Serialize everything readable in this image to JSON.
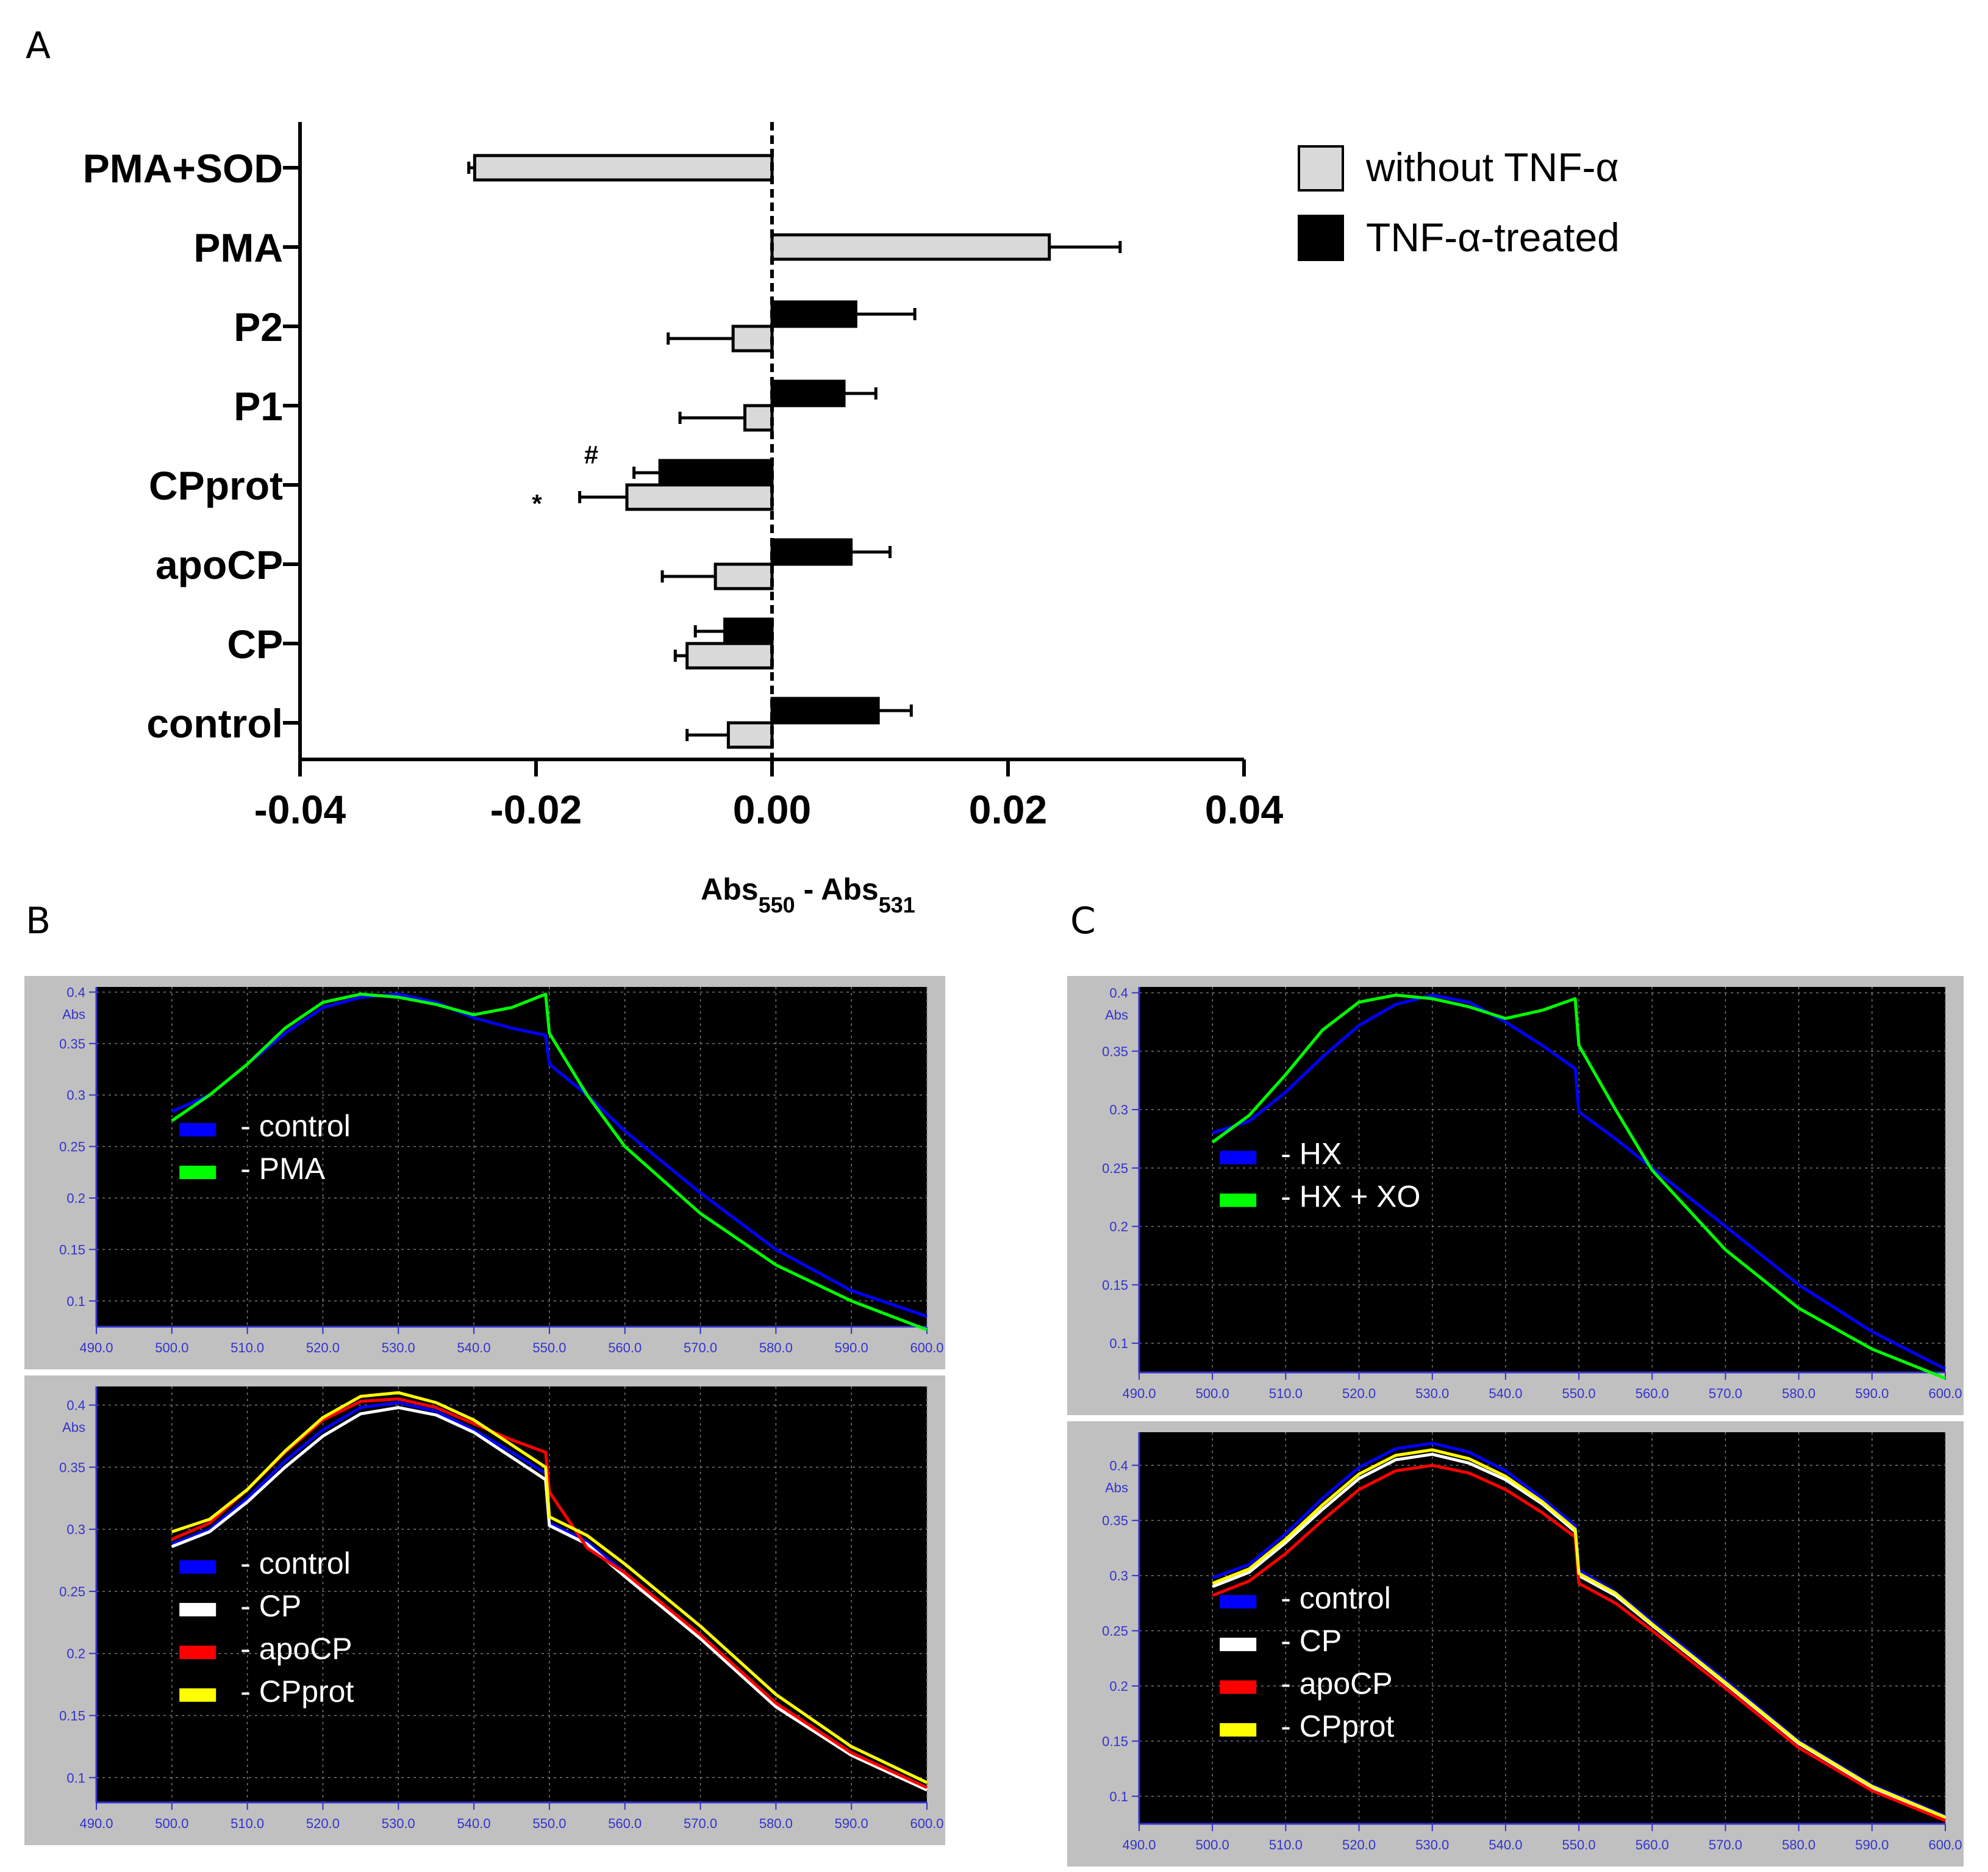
{
  "panel_labels": {
    "a": "A",
    "b": "B",
    "c": "C"
  },
  "colors": {
    "without": "#d9d9d9",
    "treated": "#000000",
    "control": "#0000ff",
    "pma": "#00ff00",
    "cp": "#ffffff",
    "apocp": "#ff0000",
    "cpprot": "#ffff00",
    "spec_bg": "#000000",
    "spec_frame": "#c0c0c0",
    "spec_axis": "#3333cc"
  },
  "chart_data": [
    {
      "type": "bar",
      "orientation": "horizontal",
      "panel": "A",
      "categories": [
        "control",
        "CP",
        "apoCP",
        "CPprot",
        "P1",
        "P2",
        "PMA",
        "PMA+SOD"
      ],
      "series": [
        {
          "name": "without TNF-α",
          "key": "without",
          "values": [
            -0.0037,
            -0.0072,
            -0.0048,
            -0.0123,
            -0.0023,
            -0.0033,
            0.0235,
            -0.0252
          ],
          "errors": [
            0.0035,
            0.001,
            0.0045,
            0.004,
            0.0055,
            0.0055,
            0.006,
            0.0005
          ]
        },
        {
          "name": "TNF-α-treated",
          "key": "treated",
          "values": [
            0.009,
            -0.004,
            0.0067,
            -0.0095,
            0.0061,
            0.0071,
            null,
            null
          ],
          "errors": [
            0.0028,
            0.0025,
            0.0033,
            0.0022,
            0.0027,
            0.005,
            null,
            null
          ]
        }
      ],
      "annotations": [
        {
          "text": "#",
          "category": "CPprot",
          "series": "treated"
        },
        {
          "text": "*",
          "category": "CPprot",
          "series": "without"
        }
      ],
      "xlim": [
        -0.04,
        0.04
      ],
      "xticks": [
        -0.04,
        -0.02,
        0.0,
        0.02,
        0.04
      ],
      "xtick_labels": [
        "-0.04",
        "-0.02",
        "0.00",
        "0.02",
        "0.04"
      ],
      "xlabel_main": "Abs",
      "xlabel_sub1": "550",
      "xlabel_mid": " - Abs",
      "xlabel_sub2": "531",
      "legend_position": "top-right"
    },
    {
      "type": "line",
      "panel": "B-top",
      "xlim": [
        490,
        600
      ],
      "ylim": [
        0.075,
        0.405
      ],
      "ylabel": "Abs",
      "xticks": [
        "490.0",
        "500.0",
        "510.0",
        "520.0",
        "530.0",
        "540.0",
        "550.0",
        "560.0",
        "570.0",
        "580.0",
        "590.0",
        "600.0"
      ],
      "yticks": [
        "0.1",
        "0.15",
        "0.2",
        "0.25",
        "0.3",
        "0.35",
        "0.4"
      ],
      "legend": [
        "- control",
        "- PMA"
      ],
      "series": [
        {
          "name": "control",
          "key": "control",
          "x": [
            500,
            505,
            510,
            515,
            520,
            525,
            530,
            535,
            540,
            545,
            549.5,
            550,
            555,
            560,
            570,
            580,
            590,
            600
          ],
          "y": [
            0.284,
            0.3,
            0.33,
            0.36,
            0.385,
            0.395,
            0.398,
            0.39,
            0.375,
            0.365,
            0.358,
            0.33,
            0.3,
            0.265,
            0.205,
            0.15,
            0.11,
            0.085
          ]
        },
        {
          "name": "PMA",
          "key": "pma",
          "x": [
            500,
            505,
            510,
            515,
            520,
            525,
            530,
            535,
            540,
            545,
            549.5,
            550,
            555,
            560,
            570,
            580,
            590,
            600
          ],
          "y": [
            0.275,
            0.3,
            0.33,
            0.365,
            0.39,
            0.398,
            0.395,
            0.388,
            0.378,
            0.385,
            0.398,
            0.36,
            0.3,
            0.25,
            0.185,
            0.135,
            0.1,
            0.072
          ]
        }
      ]
    },
    {
      "type": "line",
      "panel": "B-bottom",
      "xlim": [
        490,
        600
      ],
      "ylim": [
        0.08,
        0.415
      ],
      "ylabel": "Abs",
      "xticks": [
        "490.0",
        "500.0",
        "510.0",
        "520.0",
        "530.0",
        "540.0",
        "550.0",
        "560.0",
        "570.0",
        "580.0",
        "590.0",
        "600.0"
      ],
      "yticks": [
        "0.1",
        "0.15",
        "0.2",
        "0.25",
        "0.3",
        "0.35",
        "0.4"
      ],
      "legend": [
        "- control",
        "- CP",
        "- apoCP",
        "- CPprot"
      ],
      "series": [
        {
          "name": "control",
          "key": "control",
          "x": [
            500,
            505,
            510,
            515,
            520,
            525,
            530,
            535,
            540,
            545,
            549.5,
            550,
            555,
            560,
            570,
            580,
            590,
            600
          ],
          "y": [
            0.288,
            0.3,
            0.325,
            0.355,
            0.38,
            0.398,
            0.402,
            0.395,
            0.38,
            0.362,
            0.345,
            0.305,
            0.29,
            0.265,
            0.215,
            0.16,
            0.12,
            0.092
          ]
        },
        {
          "name": "CP",
          "key": "cp",
          "x": [
            500,
            505,
            510,
            515,
            520,
            525,
            530,
            535,
            540,
            545,
            549.5,
            550,
            555,
            560,
            570,
            580,
            590,
            600
          ],
          "y": [
            0.286,
            0.298,
            0.322,
            0.35,
            0.375,
            0.393,
            0.398,
            0.392,
            0.378,
            0.358,
            0.34,
            0.303,
            0.288,
            0.262,
            0.212,
            0.157,
            0.118,
            0.09
          ]
        },
        {
          "name": "apoCP",
          "key": "apocp",
          "x": [
            500,
            505,
            510,
            515,
            520,
            525,
            530,
            535,
            540,
            545,
            549.5,
            550,
            555,
            560,
            570,
            580,
            590,
            600
          ],
          "y": [
            0.292,
            0.305,
            0.332,
            0.362,
            0.388,
            0.403,
            0.405,
            0.398,
            0.385,
            0.372,
            0.362,
            0.33,
            0.285,
            0.265,
            0.215,
            0.16,
            0.12,
            0.092
          ]
        },
        {
          "name": "CPprot",
          "key": "cpprot",
          "x": [
            500,
            505,
            510,
            515,
            520,
            525,
            530,
            535,
            540,
            545,
            549.5,
            550,
            555,
            560,
            570,
            580,
            590,
            600
          ],
          "y": [
            0.298,
            0.308,
            0.332,
            0.363,
            0.39,
            0.407,
            0.41,
            0.402,
            0.388,
            0.368,
            0.35,
            0.31,
            0.295,
            0.272,
            0.222,
            0.167,
            0.125,
            0.096
          ]
        }
      ]
    },
    {
      "type": "line",
      "panel": "C-top",
      "xlim": [
        490,
        600
      ],
      "ylim": [
        0.075,
        0.405
      ],
      "ylabel": "Abs",
      "xticks": [
        "490.0",
        "500.0",
        "510.0",
        "520.0",
        "530.0",
        "540.0",
        "550.0",
        "560.0",
        "570.0",
        "580.0",
        "590.0",
        "600.0"
      ],
      "yticks": [
        "0.1",
        "0.15",
        "0.2",
        "0.25",
        "0.3",
        "0.35",
        "0.4"
      ],
      "legend": [
        "- HX",
        "- HX + XO"
      ],
      "series": [
        {
          "name": "HX",
          "key": "control",
          "x": [
            500,
            505,
            510,
            515,
            520,
            525,
            530,
            535,
            540,
            545,
            549.5,
            550,
            555,
            560,
            570,
            580,
            590,
            600
          ],
          "y": [
            0.28,
            0.29,
            0.315,
            0.345,
            0.372,
            0.39,
            0.398,
            0.392,
            0.375,
            0.355,
            0.335,
            0.298,
            0.275,
            0.25,
            0.2,
            0.15,
            0.11,
            0.078
          ]
        },
        {
          "name": "HX + XO",
          "key": "pma",
          "x": [
            500,
            505,
            510,
            515,
            520,
            525,
            530,
            535,
            540,
            545,
            549.5,
            550,
            555,
            560,
            570,
            580,
            590,
            600
          ],
          "y": [
            0.272,
            0.295,
            0.33,
            0.368,
            0.392,
            0.398,
            0.395,
            0.388,
            0.378,
            0.385,
            0.395,
            0.355,
            0.3,
            0.248,
            0.18,
            0.13,
            0.095,
            0.07
          ]
        }
      ]
    },
    {
      "type": "line",
      "panel": "C-bottom",
      "xlim": [
        490,
        600
      ],
      "ylim": [
        0.075,
        0.43
      ],
      "ylabel": "Abs",
      "xticks": [
        "490.0",
        "500.0",
        "510.0",
        "520.0",
        "530.0",
        "540.0",
        "550.0",
        "560.0",
        "570.0",
        "580.0",
        "590.0",
        "600.0"
      ],
      "yticks": [
        "0.1",
        "0.15",
        "0.2",
        "0.25",
        "0.3",
        "0.35",
        "0.4"
      ],
      "legend": [
        "- control",
        "- CP",
        "- apoCP",
        "- CPprot"
      ],
      "series": [
        {
          "name": "control",
          "key": "control",
          "x": [
            500,
            505,
            510,
            515,
            520,
            525,
            530,
            535,
            540,
            545,
            549.5,
            550,
            555,
            560,
            570,
            580,
            590,
            600
          ],
          "y": [
            0.298,
            0.31,
            0.338,
            0.37,
            0.398,
            0.415,
            0.42,
            0.412,
            0.395,
            0.37,
            0.345,
            0.305,
            0.285,
            0.258,
            0.205,
            0.15,
            0.11,
            0.082
          ]
        },
        {
          "name": "CP",
          "key": "cp",
          "x": [
            500,
            505,
            510,
            515,
            520,
            525,
            530,
            535,
            540,
            545,
            549.5,
            550,
            555,
            560,
            570,
            580,
            590,
            600
          ],
          "y": [
            0.29,
            0.303,
            0.33,
            0.36,
            0.388,
            0.405,
            0.41,
            0.402,
            0.387,
            0.365,
            0.34,
            0.3,
            0.282,
            0.255,
            0.202,
            0.148,
            0.108,
            0.08
          ]
        },
        {
          "name": "apoCP",
          "key": "apocp",
          "x": [
            500,
            505,
            510,
            515,
            520,
            525,
            530,
            535,
            540,
            545,
            549.5,
            550,
            555,
            560,
            570,
            580,
            590,
            600
          ],
          "y": [
            0.282,
            0.295,
            0.32,
            0.35,
            0.378,
            0.395,
            0.4,
            0.393,
            0.378,
            0.357,
            0.335,
            0.293,
            0.275,
            0.25,
            0.198,
            0.144,
            0.105,
            0.078
          ]
        },
        {
          "name": "CPprot",
          "key": "cpprot",
          "x": [
            500,
            505,
            510,
            515,
            520,
            525,
            530,
            535,
            540,
            545,
            549.5,
            550,
            555,
            560,
            570,
            580,
            590,
            600
          ],
          "y": [
            0.293,
            0.306,
            0.333,
            0.364,
            0.392,
            0.409,
            0.414,
            0.406,
            0.39,
            0.367,
            0.342,
            0.302,
            0.284,
            0.256,
            0.203,
            0.149,
            0.109,
            0.081
          ]
        }
      ]
    }
  ]
}
